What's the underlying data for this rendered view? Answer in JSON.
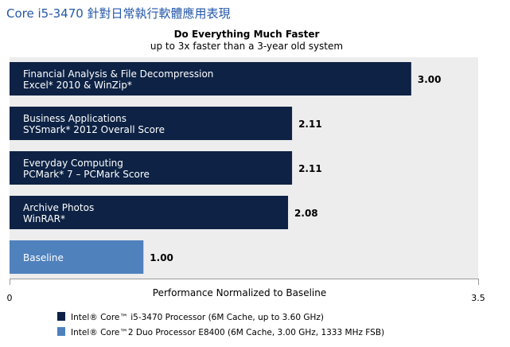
{
  "heading": "Core i5-3470 針對日常執行軟體應用表現",
  "colors": {
    "primary_bar": "#0d2244",
    "baseline_bar": "#4f81bd",
    "plot_bg": "#ededed",
    "heading_text": "#2457a8"
  },
  "chart_data": {
    "type": "bar",
    "orientation": "horizontal",
    "title": "Do Everything Much Faster",
    "subtitle": "up to 3x faster than a 3-year old system",
    "xlabel": "Performance Normalized to Baseline",
    "ylabel": "",
    "xlim": [
      0,
      3.5
    ],
    "x_ticks": [
      "0",
      "3.5"
    ],
    "grid": false,
    "legend_position": "bottom",
    "bars": [
      {
        "line1": "Financial Analysis & File Decompression",
        "line2": "Excel* 2010 & WinZip*",
        "value": 3.0,
        "value_label": "3.00",
        "series": 0
      },
      {
        "line1": "Business Applications",
        "line2": "SYSmark* 2012 Overall Score",
        "value": 2.11,
        "value_label": "2.11",
        "series": 0
      },
      {
        "line1": "Everyday Computing",
        "line2": "PCMark* 7 – PCMark Score",
        "value": 2.11,
        "value_label": "2.11",
        "series": 0
      },
      {
        "line1": "Archive Photos",
        "line2": "WinRAR*",
        "value": 2.08,
        "value_label": "2.08",
        "series": 0
      },
      {
        "line1": "Baseline",
        "line2": "",
        "value": 1.0,
        "value_label": "1.00",
        "series": 1
      }
    ],
    "series": [
      {
        "name": "Intel® Core™ i5-3470 Processor (6M Cache, up to 3.60 GHz)",
        "color": "#0d2244"
      },
      {
        "name": "Intel® Core™2 Duo Processor E8400 (6M Cache, 3.00 GHz, 1333 MHz FSB)",
        "color": "#4f81bd"
      }
    ]
  }
}
